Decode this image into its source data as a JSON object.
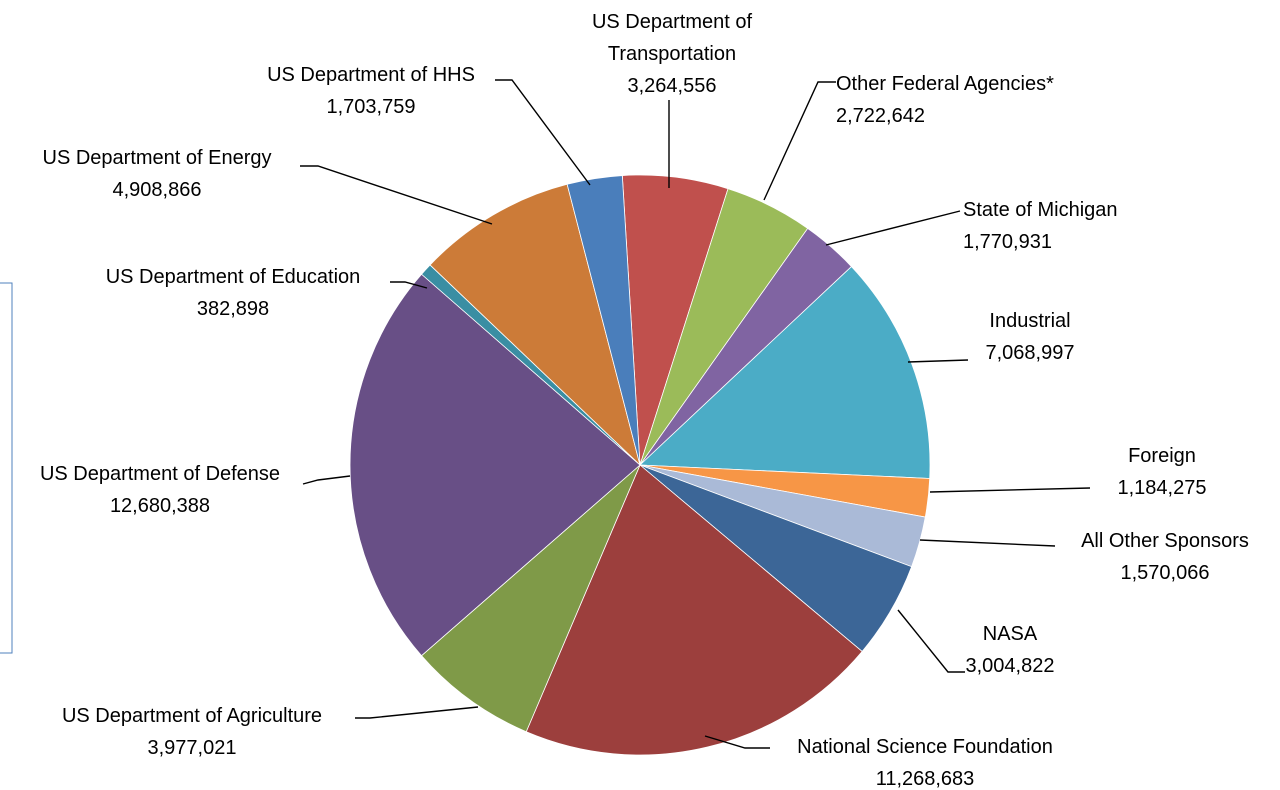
{
  "chart_data": {
    "type": "pie",
    "title": "",
    "slices": [
      {
        "label": "US Department of Transportation",
        "label_lines": [
          "US Department of",
          "Transportation"
        ],
        "value_text": "3,264,556",
        "value": 3264556,
        "color": "#c0504d"
      },
      {
        "label": "Other Federal Agencies*",
        "label_lines": [
          "Other Federal Agencies*"
        ],
        "value_text": "2,722,642",
        "value": 2722642,
        "color": "#9bbb59"
      },
      {
        "label": "State of Michigan",
        "label_lines": [
          "State of Michigan"
        ],
        "value_text": "1,770,931",
        "value": 1770931,
        "color": "#8064a2"
      },
      {
        "label": "Industrial",
        "label_lines": [
          "Industrial"
        ],
        "value_text": "7,068,997",
        "value": 7068997,
        "color": "#4bacc6"
      },
      {
        "label": "Foreign",
        "label_lines": [
          "Foreign"
        ],
        "value_text": "1,184,275",
        "value": 1184275,
        "color": "#f79646"
      },
      {
        "label": "All Other Sponsors",
        "label_lines": [
          "All Other Sponsors"
        ],
        "value_text": "1,570,066",
        "value": 1570066,
        "color": "#aabad7"
      },
      {
        "label": "NASA",
        "label_lines": [
          "NASA"
        ],
        "value_text": "3,004,822",
        "value": 3004822,
        "color": "#3c6697"
      },
      {
        "label": "National Science Foundation",
        "label_lines": [
          "National Science Foundation"
        ],
        "value_text": "11,268,683",
        "value": 11268683,
        "color": "#9c3f3d"
      },
      {
        "label": "US Department of Agriculture",
        "label_lines": [
          "US Department of Agriculture"
        ],
        "value_text": "3,977,021",
        "value": 3977021,
        "color": "#7f9a48"
      },
      {
        "label": "US Department of Defense",
        "label_lines": [
          "US Department of Defense"
        ],
        "value_text": "12,680,388",
        "value": 12680388,
        "color": "#684f86"
      },
      {
        "label": "US Department of Education",
        "label_lines": [
          "US Department of Education"
        ],
        "value_text": "382,898",
        "value": 382898,
        "color": "#3a8ea3"
      },
      {
        "label": "US Department of Energy",
        "label_lines": [
          "US Department of Energy"
        ],
        "value_text": "4,908,866",
        "value": 4908866,
        "color": "#cc7b38"
      },
      {
        "label": "US Department of HHS",
        "label_lines": [
          "US Department of HHS"
        ],
        "value_text": "1,703,759",
        "value": 1703759,
        "color": "#4a7ebb"
      }
    ]
  }
}
